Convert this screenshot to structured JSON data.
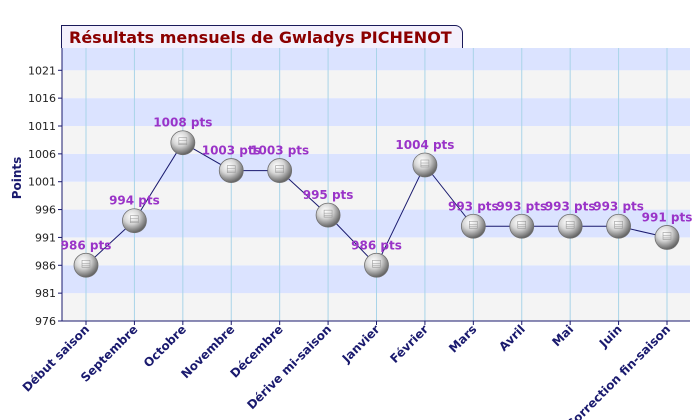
{
  "chart_data": {
    "type": "line",
    "title": "Résultats mensuels de Gwladys PICHENOT",
    "ylabel": "Points",
    "xlabel": "",
    "categories": [
      "Début saison",
      "Septembre",
      "Octobre",
      "Novembre",
      "Décembre",
      "Dérive mi-saison",
      "Janvier",
      "Février",
      "Mars",
      "Avril",
      "Mai",
      "Juin",
      "Correction fin-saison"
    ],
    "values": [
      986,
      994,
      1008,
      1003,
      1003,
      995,
      986,
      1004,
      993,
      993,
      993,
      993,
      991
    ],
    "point_labels": [
      "986 pts",
      "994 pts",
      "1008 pts",
      "1003 pts",
      "1003 pts",
      "995 pts",
      "986 pts",
      "1004 pts",
      "993 pts",
      "993 pts",
      "993 pts",
      "993 pts",
      "991 pts"
    ],
    "yticks": [
      976,
      981,
      986,
      991,
      996,
      1001,
      1006,
      1011,
      1016,
      1021
    ],
    "ylim": [
      976,
      1025
    ],
    "grid": true,
    "colors": {
      "line": "#1a1a6e",
      "label": "#9a34c8",
      "band": "#dbe3ff",
      "band_alt": "#f4f4f4",
      "axis": "#1a1a6e",
      "title": "#8b0000"
    }
  }
}
